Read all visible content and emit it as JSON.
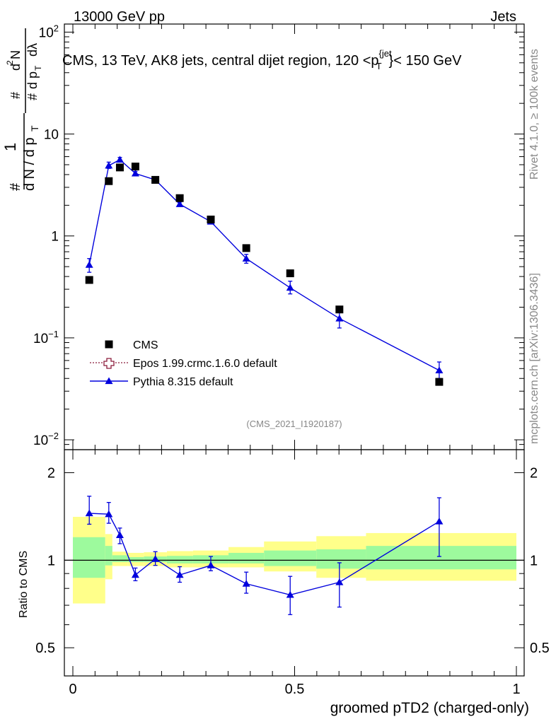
{
  "header": {
    "energy_label": "13000 GeV pp",
    "category_label": "Jets"
  },
  "side": {
    "rivet_label": "Rivet 4.1.0, ≥ 100k events",
    "mcplots_label": "mcplots.cern.ch [arXiv:1306.3436]"
  },
  "watermark": "(CMS_2021_I1920187)",
  "chart_data": [
    {
      "type": "scatter",
      "title_parts": {
        "before": "CMS, 13 TeV, AK8 jets, central dijet region, 120 <",
        "p": "p",
        "sub": "T",
        "sup": "{jet",
        "after": "}< 150 GeV"
      },
      "ylabel": "1/(dN/dpT) d2N/(dpT dlambda)",
      "xlabel": "groomed pTD2 (charged-only)",
      "yscale": "log",
      "ylim": [
        0.008,
        120
      ],
      "xlim": [
        0,
        1
      ],
      "ytick_labels": [
        {
          "value": 0.01,
          "base": "10",
          "exp": "−2"
        },
        {
          "value": 0.1,
          "base": "10",
          "exp": "−1"
        },
        {
          "value": 1,
          "base": "1",
          "exp": ""
        },
        {
          "value": 10,
          "base": "10",
          "exp": ""
        },
        {
          "value": 100,
          "base": "10",
          "exp": "2"
        }
      ],
      "legend": [
        {
          "label": "CMS",
          "marker": "square",
          "color": "#000000"
        },
        {
          "label": "Epos 1.99.crmc.1.6.0 default",
          "marker": "open-cross",
          "color": "#8b1a3a"
        },
        {
          "label": "Pythia 8.315 default",
          "marker": "triangle",
          "color": "#0000dd"
        }
      ],
      "series": [
        {
          "name": "CMS",
          "x": [
            0.037,
            0.081,
            0.106,
            0.141,
            0.186,
            0.241,
            0.311,
            0.391,
            0.49,
            0.601,
            0.826
          ],
          "y": [
            0.37,
            3.45,
            4.7,
            4.8,
            3.55,
            2.35,
            1.45,
            0.76,
            0.43,
            0.19,
            0.037
          ]
        },
        {
          "name": "Pythia 8.315 default",
          "x": [
            0.037,
            0.081,
            0.106,
            0.141,
            0.186,
            0.241,
            0.311,
            0.391,
            0.49,
            0.601,
            0.826
          ],
          "y": [
            0.52,
            4.9,
            5.6,
            4.1,
            3.55,
            2.05,
            1.38,
            0.6,
            0.31,
            0.155,
            0.048
          ],
          "err_lo": [
            0.44,
            4.6,
            5.3,
            3.9,
            3.45,
            1.95,
            1.32,
            0.54,
            0.27,
            0.125,
            0.04
          ],
          "err_hi": [
            0.6,
            5.3,
            5.9,
            4.3,
            3.65,
            2.15,
            1.44,
            0.66,
            0.36,
            0.18,
            0.058
          ]
        }
      ]
    },
    {
      "type": "line",
      "ylabel": "Ratio to CMS",
      "ylim": [
        0.4,
        2.4
      ],
      "ytick_labels": [
        {
          "value": 0.5,
          "label": "0.5"
        },
        {
          "value": 1,
          "label": "1"
        },
        {
          "value": 2,
          "label": "2"
        }
      ],
      "xtick_labels": [
        {
          "value": 0,
          "label": "0"
        },
        {
          "value": 0.5,
          "label": "0.5"
        },
        {
          "value": 1,
          "label": "1"
        }
      ],
      "bands": {
        "edges": [
          0,
          0.073,
          0.089,
          0.123,
          0.16,
          0.212,
          0.271,
          0.351,
          0.431,
          0.549,
          0.661,
          1
        ],
        "green_lo": [
          0.87,
          0.96,
          0.985,
          0.985,
          0.985,
          0.975,
          0.975,
          0.975,
          0.955,
          0.935,
          0.93
        ],
        "green_hi": [
          1.2,
          1.12,
          1.04,
          1.025,
          1.03,
          1.035,
          1.04,
          1.06,
          1.08,
          1.09,
          1.12
        ],
        "yellow_lo": [
          0.71,
          0.86,
          0.955,
          0.955,
          0.955,
          0.945,
          0.945,
          0.945,
          0.915,
          0.87,
          0.85
        ],
        "yellow_hi": [
          1.41,
          1.23,
          1.07,
          1.06,
          1.065,
          1.075,
          1.08,
          1.11,
          1.16,
          1.21,
          1.24
        ]
      },
      "series": [
        {
          "name": "Pythia 8.315 default",
          "x": [
            0.037,
            0.081,
            0.106,
            0.141,
            0.186,
            0.241,
            0.311,
            0.391,
            0.49,
            0.601,
            0.826
          ],
          "y": [
            1.45,
            1.44,
            1.22,
            0.89,
            1.01,
            0.89,
            0.96,
            0.83,
            0.76,
            0.84,
            1.36
          ],
          "err_lo": [
            1.33,
            1.34,
            1.14,
            0.85,
            0.96,
            0.84,
            0.92,
            0.77,
            0.65,
            0.69,
            1.03
          ],
          "err_hi": [
            1.66,
            1.58,
            1.29,
            0.94,
            1.07,
            0.95,
            1.03,
            0.91,
            0.88,
            0.98,
            1.64
          ]
        }
      ]
    }
  ]
}
